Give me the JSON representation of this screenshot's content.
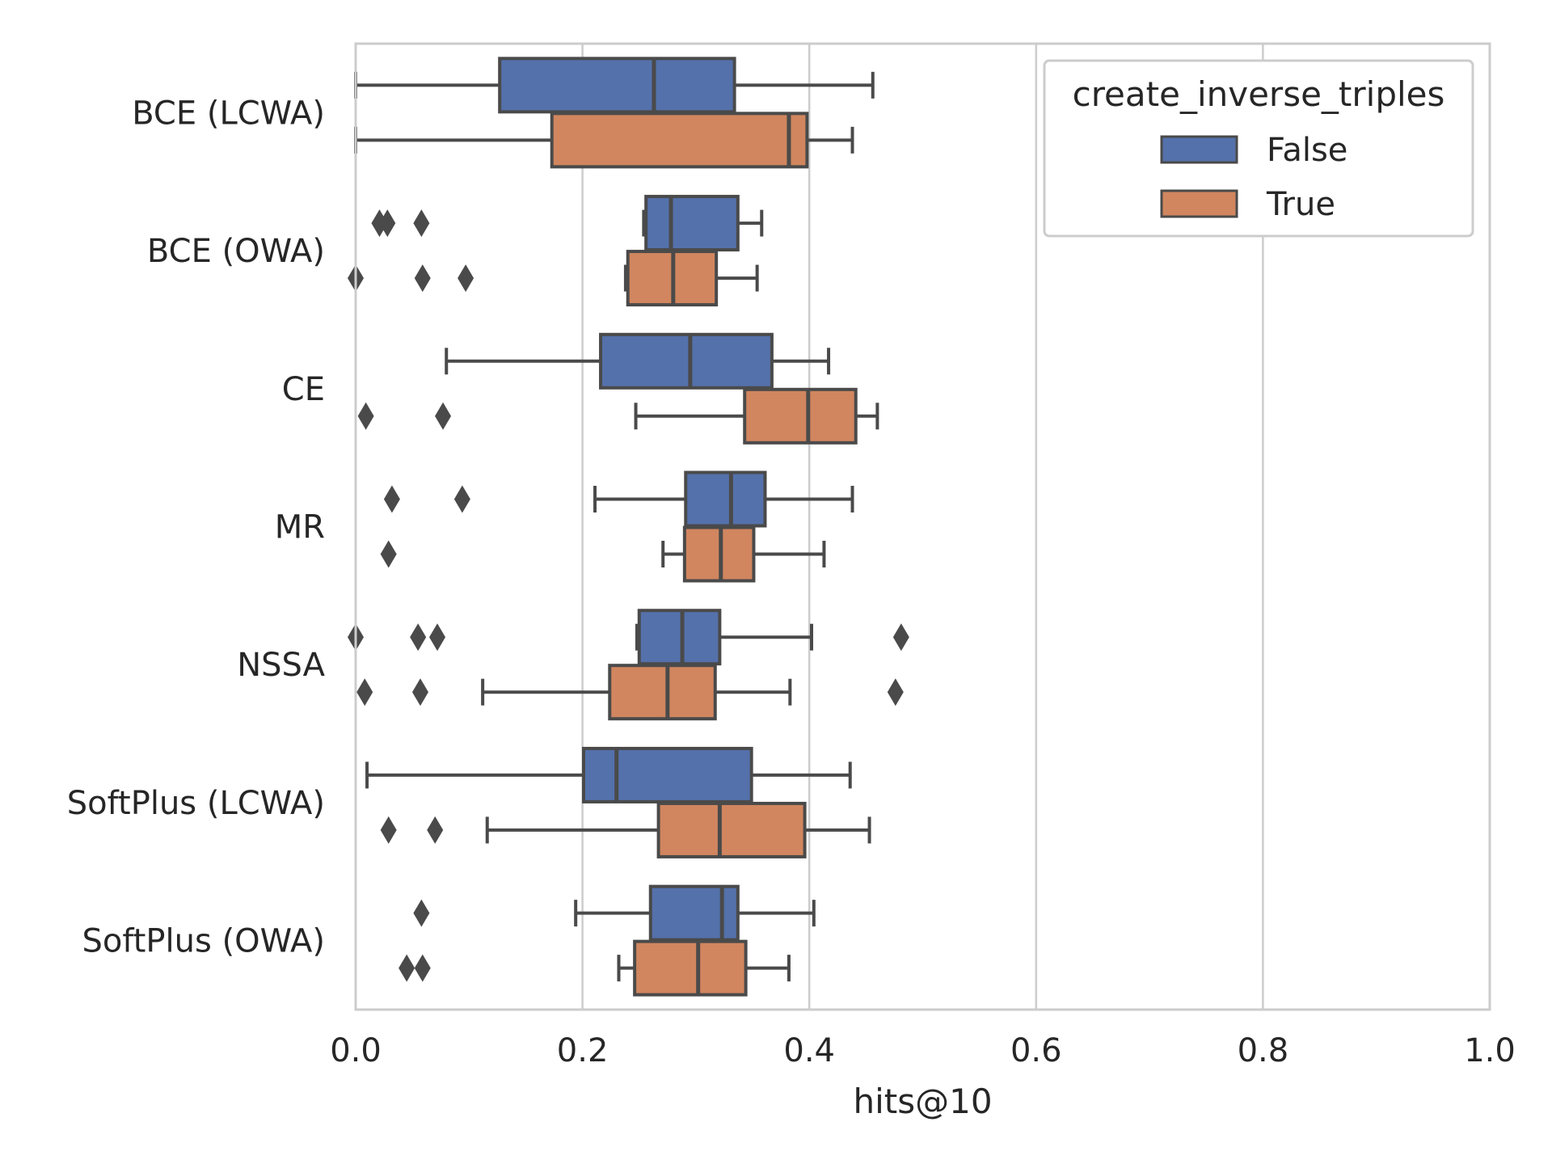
{
  "chart_data": {
    "type": "box",
    "orientation": "horizontal",
    "xlabel": "hits@10",
    "ylabel": "",
    "xlim": [
      0.0,
      1.0
    ],
    "x_ticks": [
      "0.0",
      "0.2",
      "0.4",
      "0.6",
      "0.8",
      "1.0"
    ],
    "grid": "vertical",
    "categories": [
      "BCE (LCWA)",
      "BCE (OWA)",
      "CE",
      "MR",
      "NSSA",
      "SoftPlus (LCWA)",
      "SoftPlus (OWA)"
    ],
    "legend": {
      "title": "create_inverse_triples",
      "position": "top-right"
    },
    "series": [
      {
        "name": "False",
        "color": "#5471ab",
        "boxes": [
          {
            "whisker_low": 0.0,
            "q1": 0.127,
            "median": 0.263,
            "q3": 0.334,
            "whisker_high": 0.456,
            "outliers": []
          },
          {
            "whisker_low": 0.254,
            "q1": 0.256,
            "median": 0.278,
            "q3": 0.337,
            "whisker_high": 0.358,
            "outliers": [
              0.021,
              0.028,
              0.058
            ]
          },
          {
            "whisker_low": 0.08,
            "q1": 0.216,
            "median": 0.295,
            "q3": 0.367,
            "whisker_high": 0.417,
            "outliers": []
          },
          {
            "whisker_low": 0.211,
            "q1": 0.291,
            "median": 0.331,
            "q3": 0.361,
            "whisker_high": 0.438,
            "outliers": [
              0.032,
              0.094
            ]
          },
          {
            "whisker_low": 0.248,
            "q1": 0.25,
            "median": 0.288,
            "q3": 0.321,
            "whisker_high": 0.402,
            "outliers": [
              0.0,
              0.055,
              0.072,
              0.481
            ]
          },
          {
            "whisker_low": 0.01,
            "q1": 0.201,
            "median": 0.23,
            "q3": 0.349,
            "whisker_high": 0.436,
            "outliers": []
          },
          {
            "whisker_low": 0.194,
            "q1": 0.26,
            "median": 0.323,
            "q3": 0.337,
            "whisker_high": 0.404,
            "outliers": [
              0.058
            ]
          }
        ]
      },
      {
        "name": "True",
        "color": "#d1865f",
        "boxes": [
          {
            "whisker_low": 0.0,
            "q1": 0.173,
            "median": 0.382,
            "q3": 0.398,
            "whisker_high": 0.438,
            "outliers": []
          },
          {
            "whisker_low": 0.238,
            "q1": 0.24,
            "median": 0.28,
            "q3": 0.318,
            "whisker_high": 0.354,
            "outliers": [
              0.0,
              0.059,
              0.097
            ]
          },
          {
            "whisker_low": 0.247,
            "q1": 0.343,
            "median": 0.399,
            "q3": 0.441,
            "whisker_high": 0.46,
            "outliers": [
              0.009,
              0.077
            ]
          },
          {
            "whisker_low": 0.271,
            "q1": 0.29,
            "median": 0.322,
            "q3": 0.351,
            "whisker_high": 0.413,
            "outliers": [
              0.029
            ]
          },
          {
            "whisker_low": 0.112,
            "q1": 0.224,
            "median": 0.275,
            "q3": 0.317,
            "whisker_high": 0.383,
            "outliers": [
              0.008,
              0.057,
              0.476
            ]
          },
          {
            "whisker_low": 0.116,
            "q1": 0.267,
            "median": 0.321,
            "q3": 0.396,
            "whisker_high": 0.453,
            "outliers": [
              0.029,
              0.07
            ]
          },
          {
            "whisker_low": 0.232,
            "q1": 0.246,
            "median": 0.302,
            "q3": 0.344,
            "whisker_high": 0.382,
            "outliers": [
              0.045,
              0.059
            ]
          }
        ]
      }
    ]
  }
}
